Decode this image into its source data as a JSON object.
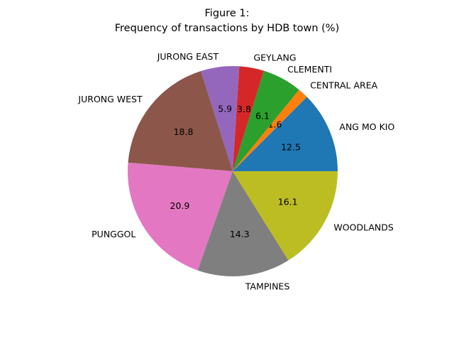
{
  "chart_data": {
    "type": "pie",
    "title_line1": "Figure 1:",
    "title_line2": "Frequency of transactions by HDB town (%)",
    "slices": [
      {
        "label": "ANG MO KIO",
        "value": 12.5,
        "pct_label": "12.5",
        "color": "#1f77b4"
      },
      {
        "label": "CENTRAL AREA",
        "value": 1.6,
        "pct_label": "1.6",
        "color": "#ff7f0e"
      },
      {
        "label": "CLEMENTI",
        "value": 6.1,
        "pct_label": "6.1",
        "color": "#2ca02c"
      },
      {
        "label": "GEYLANG",
        "value": 3.8,
        "pct_label": "3.8",
        "color": "#d62728"
      },
      {
        "label": "JURONG EAST",
        "value": 5.9,
        "pct_label": "5.9",
        "color": "#9467bd"
      },
      {
        "label": "JURONG WEST",
        "value": 18.8,
        "pct_label": "18.8",
        "color": "#8c564b"
      },
      {
        "label": "PUNGGOL",
        "value": 20.9,
        "pct_label": "20.9",
        "color": "#e377c2"
      },
      {
        "label": "TAMPINES",
        "value": 14.3,
        "pct_label": "14.3",
        "color": "#7f7f7f"
      },
      {
        "label": "WOODLANDS",
        "value": 16.1,
        "pct_label": "16.1",
        "color": "#bcbd22"
      }
    ]
  }
}
